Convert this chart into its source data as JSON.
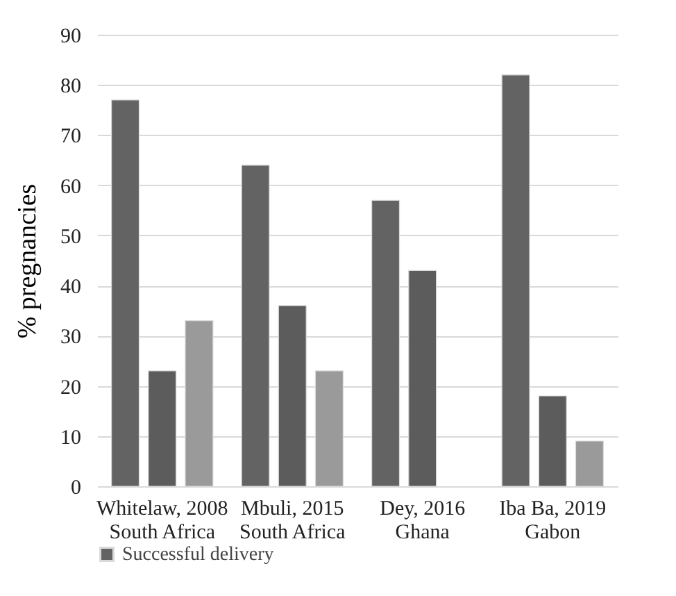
{
  "chart_data": {
    "type": "bar",
    "ylabel": "% pregnancies",
    "categories": [
      "Whitelaw, 2008\nSouth Africa",
      "Mbuli, 2015\nSouth Africa",
      "Dey, 2016\nGhana",
      "Iba Ba, 2019\nGabon"
    ],
    "series": [
      {
        "name": "Successful delivery",
        "color": "#636363",
        "values": [
          77,
          64,
          57,
          82
        ]
      },
      {
        "color": "#5c5c5c",
        "values": [
          23,
          36,
          43,
          18
        ]
      },
      {
        "color": "#9a9a9a",
        "values": [
          33,
          23,
          null,
          9
        ]
      }
    ],
    "ylim": [
      0,
      90
    ],
    "yticks": [
      0,
      10,
      20,
      30,
      40,
      50,
      60,
      70,
      80,
      90
    ],
    "grid": "y",
    "legend": "bottom"
  }
}
